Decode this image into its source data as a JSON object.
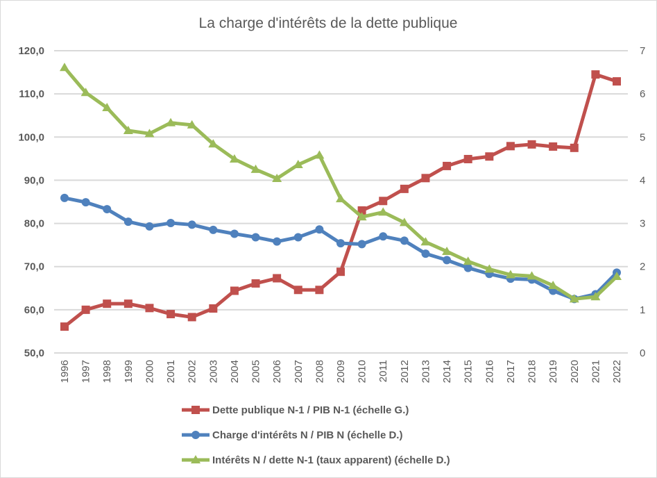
{
  "chart_data": {
    "type": "line",
    "title": "La charge d'intérêts de la dette publique",
    "xlabel": "",
    "ylabel": "",
    "categories": [
      "1996",
      "1997",
      "1998",
      "1999",
      "2000",
      "2001",
      "2002",
      "2003",
      "2004",
      "2005",
      "2006",
      "2007",
      "2008",
      "2009",
      "2010",
      "2011",
      "2012",
      "2013",
      "2014",
      "2015",
      "2016",
      "2017",
      "2018",
      "2019",
      "2020",
      "2021",
      "2022"
    ],
    "y_left": {
      "lim": [
        50,
        120
      ],
      "ticks": [
        50,
        60,
        70,
        80,
        90,
        100,
        110,
        120
      ],
      "tick_labels": [
        "50,0",
        "60,0",
        "70,0",
        "80,0",
        "90,0",
        "100,0",
        "110,0",
        "120,0"
      ]
    },
    "y_right": {
      "lim": [
        0,
        7
      ],
      "ticks": [
        0,
        1,
        2,
        3,
        4,
        5,
        6,
        7
      ],
      "tick_labels": [
        "0",
        "1",
        "2",
        "3",
        "4",
        "5",
        "6",
        "7"
      ]
    },
    "grid": true,
    "legend_position": "bottom",
    "series": [
      {
        "name": "Dette publique N-1 / PIB N-1 (échelle G.)",
        "axis": "left",
        "color": "#c0504d",
        "marker": "square",
        "values": [
          56.1,
          60.0,
          61.4,
          61.4,
          60.4,
          59.0,
          58.3,
          60.3,
          64.4,
          66.1,
          67.3,
          64.6,
          64.6,
          68.8,
          83.0,
          85.2,
          88.0,
          90.5,
          93.3,
          94.9,
          95.5,
          97.9,
          98.3,
          97.8,
          97.5,
          114.5,
          112.9
        ]
      },
      {
        "name": "Charge d'intérêts N / PIB N (échelle D.)",
        "axis": "right",
        "color": "#4f81bd",
        "marker": "circle",
        "values": [
          3.59,
          3.49,
          3.33,
          3.04,
          2.93,
          3.01,
          2.97,
          2.85,
          2.76,
          2.68,
          2.58,
          2.68,
          2.86,
          2.54,
          2.52,
          2.7,
          2.6,
          2.3,
          2.15,
          1.97,
          1.83,
          1.72,
          1.7,
          1.44,
          1.25,
          1.36,
          1.86
        ]
      },
      {
        "name": "Intérêts N / dette N-1 (taux apparent) (échelle D.)",
        "axis": "right",
        "color": "#9bbb59",
        "marker": "triangle",
        "values": [
          6.61,
          6.03,
          5.68,
          5.15,
          5.08,
          5.33,
          5.28,
          4.84,
          4.49,
          4.25,
          4.04,
          4.36,
          4.58,
          3.57,
          3.15,
          3.26,
          3.02,
          2.57,
          2.35,
          2.12,
          1.94,
          1.81,
          1.78,
          1.56,
          1.25,
          1.3,
          1.77
        ]
      }
    ]
  }
}
